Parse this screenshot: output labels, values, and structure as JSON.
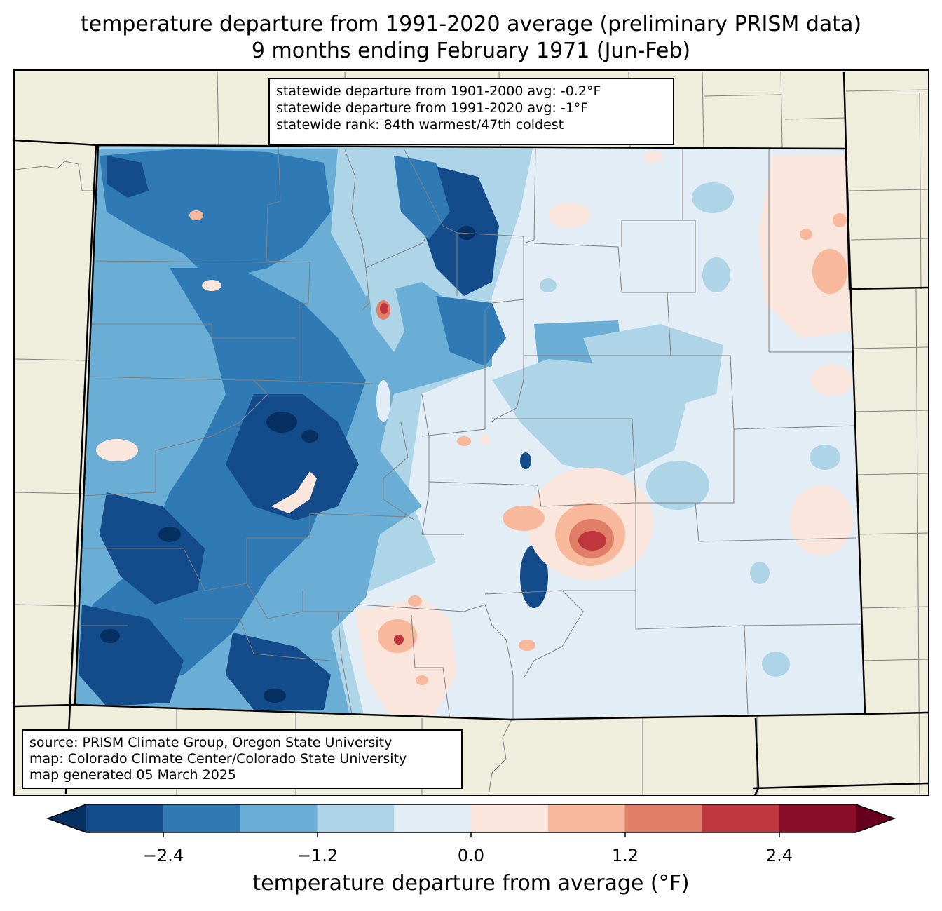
{
  "header": {
    "title_line1": "temperature departure from 1991-2020 average (preliminary PRISM data)",
    "title_line2": "9 months ending February 1971 (Jun-Feb)"
  },
  "stats_box": {
    "line1": "statewide departure from 1901-2000 avg: -0.2°F",
    "line2": "statewide departure from 1991-2020 avg: -1°F",
    "line3": "statewide rank: 84th warmest/47th coldest"
  },
  "source_box": {
    "line1": "source: PRISM Climate Group, Oregon State University",
    "line2": "map: Colorado Climate Center/Colorado State University",
    "line3": "map generated 05 March 2025"
  },
  "colorbar": {
    "label": "temperature departure from average (°F)",
    "ticks": [
      "−2.4",
      "−1.2",
      "0.0",
      "1.2",
      "2.4"
    ],
    "colors": [
      "#053061",
      "#144b8a",
      "#2f79b5",
      "#6aaed6",
      "#aed4e8",
      "#e3edf5",
      "#fae6dc",
      "#f7b89c",
      "#e17e67",
      "#c0363e",
      "#890d27",
      "#67001f"
    ]
  },
  "map_colors": {
    "land_outside": "#efeedc",
    "county_lines": "#808080",
    "state_lines": "#000000"
  }
}
